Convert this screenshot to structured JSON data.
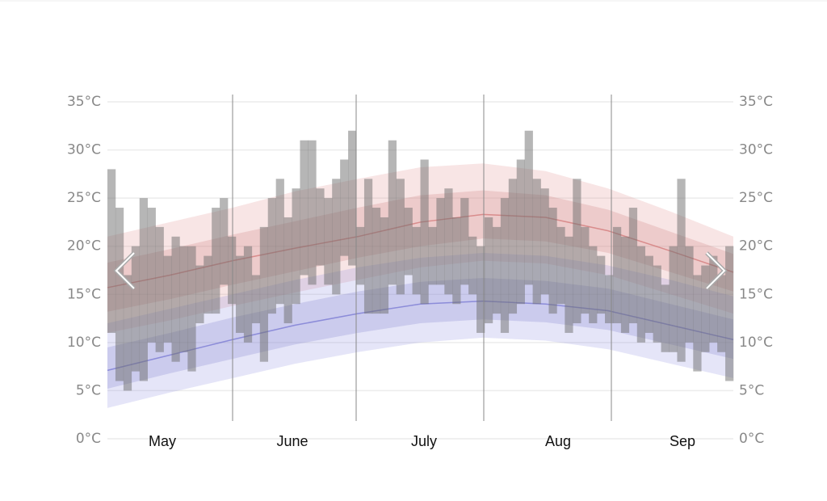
{
  "chart_data": {
    "type": "range",
    "categories": [
      "May",
      "June",
      "July",
      "Aug",
      "Sep"
    ],
    "ylim": [
      0,
      35
    ],
    "yticks": [
      {
        "value": 0,
        "label": "0°C"
      },
      {
        "value": 5,
        "label": "5°C"
      },
      {
        "value": 10,
        "label": "10°C"
      },
      {
        "value": 15,
        "label": "15°C"
      },
      {
        "value": 20,
        "label": "20°C"
      },
      {
        "value": 25,
        "label": "25°C"
      },
      {
        "value": 30,
        "label": "30°C"
      },
      {
        "value": 35,
        "label": "35°C"
      }
    ],
    "grid": true,
    "bars": {
      "color": "#6e6e6e",
      "high": [
        28,
        24,
        17,
        20,
        25,
        24,
        22,
        19,
        21,
        20,
        20,
        18,
        19,
        24,
        25,
        21,
        19,
        20,
        17,
        22,
        25,
        27,
        23,
        26,
        31,
        31,
        26,
        25,
        27,
        29,
        32,
        22,
        27,
        24,
        23,
        31,
        27,
        24,
        22,
        29,
        22,
        25,
        26,
        23,
        25,
        21,
        20,
        23,
        22,
        25,
        27,
        29,
        32,
        27,
        26,
        24,
        22,
        21,
        27,
        22,
        20,
        19,
        17,
        22,
        21,
        24,
        20,
        19,
        18,
        16,
        20,
        27,
        20,
        17,
        18,
        19,
        17,
        20
      ],
      "low": [
        11,
        6,
        5,
        7,
        6,
        10,
        9,
        10,
        8,
        9,
        7,
        12,
        13,
        13,
        16,
        14,
        11,
        10,
        12,
        8,
        13,
        14,
        12,
        14,
        17,
        16,
        18,
        16,
        15,
        19,
        18,
        16,
        13,
        13,
        13,
        16,
        15,
        17,
        15,
        14,
        16,
        16,
        15,
        14,
        16,
        15,
        11,
        12,
        13,
        11,
        13,
        14,
        16,
        14,
        15,
        13,
        14,
        11,
        12,
        13,
        12,
        13,
        12,
        12,
        11,
        12,
        10,
        11,
        10,
        9,
        9,
        8,
        10,
        7,
        9,
        10,
        9,
        6
      ]
    },
    "bands": [
      {
        "color": "#e08a8a",
        "upper": [
          21,
          22.5,
          24,
          25.7,
          27,
          28.2,
          28.6,
          27.8,
          26,
          23.6,
          21
        ],
        "lower": [
          11,
          12.3,
          13.8,
          15.2,
          16.5,
          17.8,
          18.5,
          18.2,
          17,
          15,
          13
        ]
      },
      {
        "color": "#c87070",
        "upper": [
          18.3,
          19.7,
          21.2,
          22.6,
          24,
          25.3,
          25.8,
          25.3,
          23.8,
          21.5,
          19.2
        ],
        "lower": [
          13.2,
          14.5,
          16,
          17.4,
          18.8,
          20,
          20.8,
          20.5,
          19.3,
          17.3,
          15.3
        ]
      },
      {
        "color": "#8a8ae0",
        "upper": [
          12,
          13.5,
          15,
          16.5,
          17.8,
          18.8,
          19.3,
          19,
          18,
          16.5,
          14.8
        ],
        "lower": [
          3.2,
          4.8,
          6.3,
          7.8,
          9,
          10,
          10.5,
          10.2,
          9.3,
          7.8,
          6.3
        ]
      },
      {
        "color": "#7070c8",
        "upper": [
          9.5,
          11,
          12.6,
          14,
          15.3,
          16.3,
          16.7,
          16.4,
          15.6,
          14,
          12.4
        ],
        "lower": [
          5.2,
          6.8,
          8.3,
          9.8,
          11,
          12,
          12.4,
          12.1,
          11.3,
          9.8,
          8.3
        ]
      }
    ],
    "lines": [
      {
        "color": "#d07070",
        "values": [
          15.7,
          17,
          18.5,
          19.8,
          21,
          22.5,
          23.3,
          23,
          21.6,
          19.5,
          17.3
        ]
      },
      {
        "color": "#7070d0",
        "values": [
          7.1,
          8.7,
          10.3,
          11.8,
          13,
          14,
          14.3,
          14,
          13.3,
          11.8,
          10.3
        ]
      }
    ]
  }
}
